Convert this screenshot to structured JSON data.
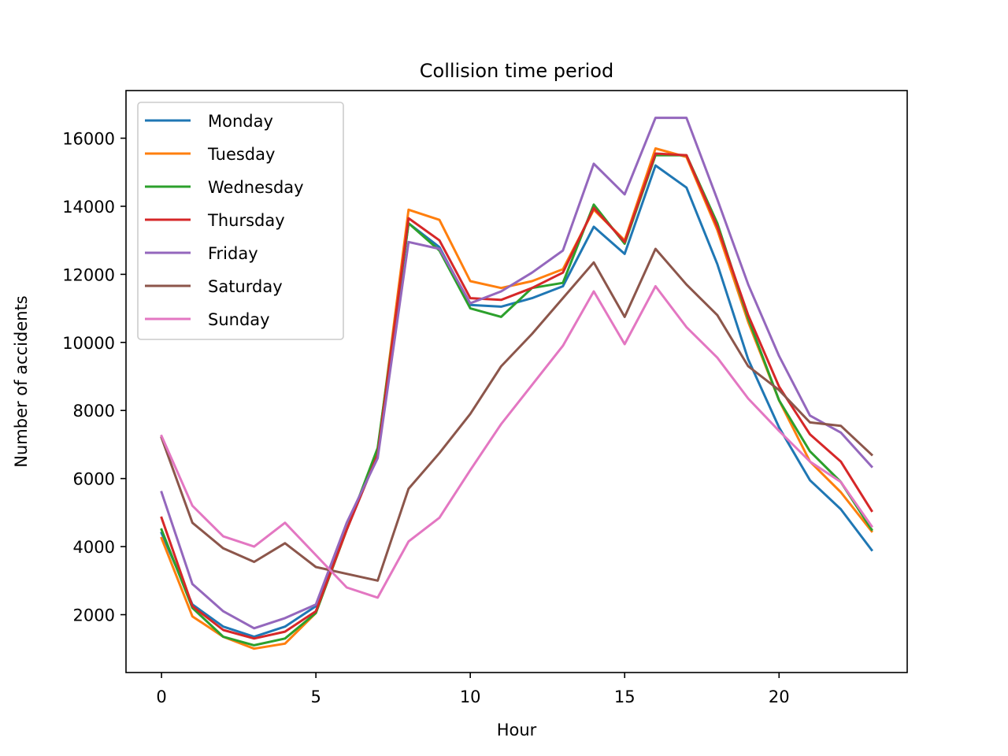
{
  "chart_data": {
    "type": "line",
    "title": "Collision time period",
    "xlabel": "Hour",
    "ylabel": "Number of accidents",
    "xlim": [
      -1.15,
      24.15
    ],
    "ylim": [
      300,
      17400
    ],
    "xticks": [
      0,
      5,
      10,
      15,
      20
    ],
    "yticks": [
      2000,
      4000,
      6000,
      8000,
      10000,
      12000,
      14000,
      16000
    ],
    "grid": false,
    "legend_position": "upper left",
    "x": [
      0,
      1,
      2,
      3,
      4,
      5,
      6,
      7,
      8,
      9,
      10,
      11,
      12,
      13,
      14,
      15,
      16,
      17,
      18,
      19,
      20,
      21,
      22,
      23
    ],
    "series": [
      {
        "name": "Monday",
        "color": "#1f77b4",
        "values": [
          4400,
          2300,
          1650,
          1350,
          1650,
          2250,
          4500,
          6700,
          13500,
          12800,
          11100,
          11050,
          11300,
          11650,
          13400,
          12600,
          15200,
          14550,
          12300,
          9500,
          7500,
          5950,
          5100,
          3900
        ]
      },
      {
        "name": "Tuesday",
        "color": "#ff7f0e",
        "values": [
          4250,
          1950,
          1350,
          1000,
          1150,
          2050,
          4500,
          6800,
          13900,
          13600,
          11800,
          11600,
          11800,
          12150,
          13900,
          13000,
          15700,
          15450,
          13300,
          10600,
          8300,
          6500,
          5600,
          4450
        ]
      },
      {
        "name": "Wednesday",
        "color": "#2ca02c",
        "values": [
          4500,
          2200,
          1350,
          1100,
          1300,
          2050,
          4500,
          6900,
          13500,
          12700,
          11000,
          10750,
          11600,
          11750,
          14050,
          12900,
          15500,
          15500,
          13500,
          10700,
          8300,
          6800,
          5900,
          4500
        ]
      },
      {
        "name": "Thursday",
        "color": "#d62728",
        "values": [
          4850,
          2250,
          1550,
          1300,
          1500,
          2100,
          4500,
          6700,
          13650,
          13000,
          11300,
          11250,
          11600,
          12050,
          13950,
          12950,
          15550,
          15500,
          13400,
          10800,
          8700,
          7300,
          6500,
          5050
        ]
      },
      {
        "name": "Friday",
        "color": "#9467bd",
        "values": [
          5600,
          2900,
          2100,
          1600,
          1900,
          2300,
          4700,
          6600,
          12950,
          12750,
          11150,
          11500,
          12050,
          12700,
          15250,
          14350,
          16600,
          16600,
          14200,
          11700,
          9600,
          7850,
          7350,
          6350
        ]
      },
      {
        "name": "Saturday",
        "color": "#8c564b",
        "values": [
          7200,
          4700,
          3950,
          3550,
          4100,
          3400,
          3200,
          3000,
          5700,
          6750,
          7900,
          9300,
          10250,
          11300,
          12350,
          10750,
          12750,
          11700,
          10800,
          9300,
          8600,
          7650,
          7550,
          6700
        ]
      },
      {
        "name": "Sunday",
        "color": "#e377c2",
        "values": [
          7250,
          5200,
          4300,
          4000,
          4700,
          3750,
          2800,
          2500,
          4150,
          4850,
          6250,
          7600,
          8750,
          9900,
          11500,
          9950,
          11650,
          10450,
          9550,
          8350,
          7400,
          6500,
          5900,
          4600
        ]
      }
    ]
  }
}
